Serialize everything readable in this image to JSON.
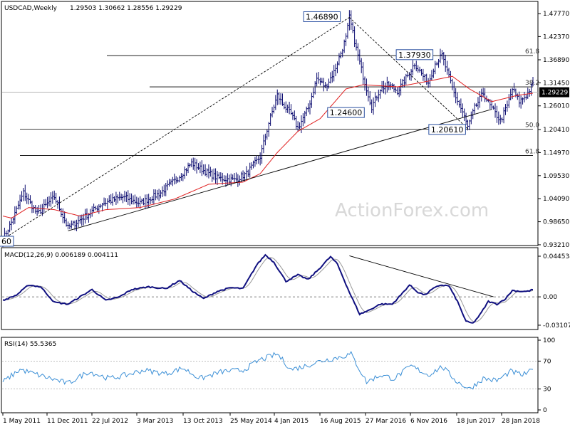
{
  "chart_data": [
    {
      "type": "ohlc",
      "title": "USDCAD,Weekly",
      "ohlc_header": "1.29503 1.30662 1.28556 1.29229",
      "current_price_label": "1.29229",
      "ylim": [
        0.932,
        1.505
      ],
      "y_ticks": [
        "1.47770",
        "1.42370",
        "1.36890",
        "1.31450",
        "1.26010",
        "1.20410",
        "1.14970",
        "1.09530",
        "1.04090",
        "0.98650",
        "0.93210"
      ],
      "x_ticks": [
        "1 May 2011",
        "11 Dec 2011",
        "22 Jul 2012",
        "3 Mar 2013",
        "13 Oct 2013",
        "25 May 2014",
        "4 Jan 2015",
        "16 Aug 2015",
        "27 Mar 2016",
        "6 Nov 2016",
        "18 Jun 2017",
        "28 Jan 2018"
      ],
      "price_labels": [
        "1.46890",
        "1.37930",
        "1.24600",
        "1.20610",
        "60"
      ],
      "fib_levels": [
        {
          "label": "61.8",
          "value": 1.3787
        },
        {
          "label": "38.2",
          "value": 1.3049
        },
        {
          "label": "50.0",
          "value": 1.2048
        },
        {
          "label": "61.8",
          "value": 1.1428
        }
      ],
      "current_price": 1.29229,
      "anchors": [
        {
          "i": 0,
          "v": 0.945
        },
        {
          "i": 5,
          "v": 0.985
        },
        {
          "i": 12,
          "v": 1.055
        },
        {
          "i": 20,
          "v": 1.005
        },
        {
          "i": 30,
          "v": 1.045
        },
        {
          "i": 38,
          "v": 0.972
        },
        {
          "i": 50,
          "v": 1.005
        },
        {
          "i": 58,
          "v": 1.03
        },
        {
          "i": 70,
          "v": 1.045
        },
        {
          "i": 80,
          "v": 1.03
        },
        {
          "i": 92,
          "v": 1.055
        },
        {
          "i": 102,
          "v": 1.09
        },
        {
          "i": 110,
          "v": 1.125
        },
        {
          "i": 118,
          "v": 1.105
        },
        {
          "i": 125,
          "v": 1.09
        },
        {
          "i": 135,
          "v": 1.085
        },
        {
          "i": 142,
          "v": 1.1
        },
        {
          "i": 150,
          "v": 1.14
        },
        {
          "i": 155,
          "v": 1.22
        },
        {
          "i": 160,
          "v": 1.285
        },
        {
          "i": 163,
          "v": 1.265
        },
        {
          "i": 168,
          "v": 1.24
        },
        {
          "i": 172,
          "v": 1.208
        },
        {
          "i": 178,
          "v": 1.255
        },
        {
          "i": 183,
          "v": 1.325
        },
        {
          "i": 188,
          "v": 1.305
        },
        {
          "i": 193,
          "v": 1.34
        },
        {
          "i": 197,
          "v": 1.385
        },
        {
          "i": 200,
          "v": 1.42
        },
        {
          "i": 202,
          "v": 1.4689
        },
        {
          "i": 206,
          "v": 1.395
        },
        {
          "i": 210,
          "v": 1.33
        },
        {
          "i": 215,
          "v": 1.258
        },
        {
          "i": 220,
          "v": 1.3
        },
        {
          "i": 225,
          "v": 1.31
        },
        {
          "i": 230,
          "v": 1.295
        },
        {
          "i": 235,
          "v": 1.325
        },
        {
          "i": 240,
          "v": 1.36
        },
        {
          "i": 245,
          "v": 1.33
        },
        {
          "i": 248,
          "v": 1.315
        },
        {
          "i": 252,
          "v": 1.36
        },
        {
          "i": 256,
          "v": 1.379
        },
        {
          "i": 259,
          "v": 1.34
        },
        {
          "i": 263,
          "v": 1.29
        },
        {
          "i": 268,
          "v": 1.245
        },
        {
          "i": 271,
          "v": 1.21
        },
        {
          "i": 275,
          "v": 1.255
        },
        {
          "i": 280,
          "v": 1.29
        },
        {
          "i": 284,
          "v": 1.26
        },
        {
          "i": 290,
          "v": 1.225
        },
        {
          "i": 294,
          "v": 1.26
        },
        {
          "i": 297,
          "v": 1.3
        },
        {
          "i": 301,
          "v": 1.27
        },
        {
          "i": 305,
          "v": 1.285
        },
        {
          "i": 309,
          "v": 1.31
        }
      ],
      "sma_offset": [
        {
          "i": 0,
          "v": 1.0
        },
        {
          "i": 5,
          "v": 0.995
        },
        {
          "i": 15,
          "v": 1.02
        },
        {
          "i": 30,
          "v": 1.015
        },
        {
          "i": 45,
          "v": 1.0
        },
        {
          "i": 60,
          "v": 1.015
        },
        {
          "i": 80,
          "v": 1.02
        },
        {
          "i": 100,
          "v": 1.04
        },
        {
          "i": 120,
          "v": 1.075
        },
        {
          "i": 140,
          "v": 1.08
        },
        {
          "i": 150,
          "v": 1.1
        },
        {
          "i": 160,
          "v": 1.15
        },
        {
          "i": 172,
          "v": 1.2
        },
        {
          "i": 185,
          "v": 1.23
        },
        {
          "i": 200,
          "v": 1.3
        },
        {
          "i": 210,
          "v": 1.31
        },
        {
          "i": 230,
          "v": 1.305
        },
        {
          "i": 250,
          "v": 1.32
        },
        {
          "i": 262,
          "v": 1.33
        },
        {
          "i": 272,
          "v": 1.3
        },
        {
          "i": 285,
          "v": 1.27
        },
        {
          "i": 300,
          "v": 1.285
        },
        {
          "i": 309,
          "v": 1.29
        }
      ]
    },
    {
      "type": "line",
      "title": "MACD(12,26,9) 0.006189 0.004111",
      "ylim": [
        -0.035,
        0.05
      ],
      "y_ticks": [
        "0.044534",
        "0.00",
        "-0.031072"
      ],
      "anchors": [
        {
          "i": 0,
          "v": -0.004
        },
        {
          "i": 8,
          "v": 0.002
        },
        {
          "i": 15,
          "v": 0.013
        },
        {
          "i": 22,
          "v": 0.011
        },
        {
          "i": 30,
          "v": -0.006
        },
        {
          "i": 38,
          "v": -0.008
        },
        {
          "i": 45,
          "v": 0.0
        },
        {
          "i": 52,
          "v": 0.008
        },
        {
          "i": 60,
          "v": -0.004
        },
        {
          "i": 68,
          "v": 0.0
        },
        {
          "i": 75,
          "v": 0.008
        },
        {
          "i": 85,
          "v": 0.011
        },
        {
          "i": 95,
          "v": 0.009
        },
        {
          "i": 103,
          "v": 0.018
        },
        {
          "i": 110,
          "v": 0.007
        },
        {
          "i": 117,
          "v": -0.002
        },
        {
          "i": 125,
          "v": 0.006
        },
        {
          "i": 133,
          "v": 0.01
        },
        {
          "i": 140,
          "v": 0.009
        },
        {
          "i": 148,
          "v": 0.035
        },
        {
          "i": 153,
          "v": 0.046
        },
        {
          "i": 158,
          "v": 0.038
        },
        {
          "i": 165,
          "v": 0.017
        },
        {
          "i": 172,
          "v": 0.024
        },
        {
          "i": 178,
          "v": 0.019
        },
        {
          "i": 184,
          "v": 0.03
        },
        {
          "i": 191,
          "v": 0.044
        },
        {
          "i": 195,
          "v": 0.036
        },
        {
          "i": 202,
          "v": 0.005
        },
        {
          "i": 208,
          "v": -0.019
        },
        {
          "i": 213,
          "v": -0.015
        },
        {
          "i": 220,
          "v": -0.008
        },
        {
          "i": 227,
          "v": -0.008
        },
        {
          "i": 232,
          "v": 0.002
        },
        {
          "i": 237,
          "v": 0.013
        },
        {
          "i": 242,
          "v": 0.005
        },
        {
          "i": 246,
          "v": 0.002
        },
        {
          "i": 250,
          "v": 0.008
        },
        {
          "i": 255,
          "v": 0.013
        },
        {
          "i": 260,
          "v": 0.012
        },
        {
          "i": 265,
          "v": -0.005
        },
        {
          "i": 270,
          "v": -0.027
        },
        {
          "i": 274,
          "v": -0.029
        },
        {
          "i": 278,
          "v": -0.02
        },
        {
          "i": 283,
          "v": -0.005
        },
        {
          "i": 288,
          "v": -0.008
        },
        {
          "i": 293,
          "v": -0.002
        },
        {
          "i": 297,
          "v": 0.007
        },
        {
          "i": 302,
          "v": 0.006
        },
        {
          "i": 306,
          "v": 0.006
        },
        {
          "i": 309,
          "v": 0.008
        }
      ],
      "trendline": [
        {
          "i": 202,
          "v": 0.045
        },
        {
          "i": 286,
          "v": 0.0
        }
      ]
    },
    {
      "type": "line",
      "title": "RSI(14) 55.5365",
      "ylim": [
        0,
        100
      ],
      "y_ticks": [
        "100",
        "70",
        "30",
        "0"
      ],
      "anchors": [
        {
          "i": 0,
          "v": 40
        },
        {
          "i": 10,
          "v": 58
        },
        {
          "i": 18,
          "v": 52
        },
        {
          "i": 28,
          "v": 45
        },
        {
          "i": 38,
          "v": 38
        },
        {
          "i": 50,
          "v": 55
        },
        {
          "i": 62,
          "v": 45
        },
        {
          "i": 72,
          "v": 50
        },
        {
          "i": 82,
          "v": 57
        },
        {
          "i": 95,
          "v": 52
        },
        {
          "i": 105,
          "v": 60
        },
        {
          "i": 115,
          "v": 45
        },
        {
          "i": 128,
          "v": 55
        },
        {
          "i": 140,
          "v": 57
        },
        {
          "i": 150,
          "v": 72
        },
        {
          "i": 160,
          "v": 80
        },
        {
          "i": 168,
          "v": 58
        },
        {
          "i": 175,
          "v": 62
        },
        {
          "i": 185,
          "v": 70
        },
        {
          "i": 195,
          "v": 75
        },
        {
          "i": 203,
          "v": 80
        },
        {
          "i": 212,
          "v": 40
        },
        {
          "i": 220,
          "v": 50
        },
        {
          "i": 228,
          "v": 45
        },
        {
          "i": 238,
          "v": 63
        },
        {
          "i": 248,
          "v": 50
        },
        {
          "i": 256,
          "v": 62
        },
        {
          "i": 265,
          "v": 40
        },
        {
          "i": 272,
          "v": 30
        },
        {
          "i": 280,
          "v": 45
        },
        {
          "i": 288,
          "v": 42
        },
        {
          "i": 296,
          "v": 55
        },
        {
          "i": 303,
          "v": 50
        },
        {
          "i": 309,
          "v": 57
        }
      ]
    }
  ],
  "watermark": "ActionForex.com",
  "colors": {
    "bars": "#0a0a6e",
    "sma": "#e02020",
    "macd": "#101080",
    "signal": "#999999",
    "rsi": "#3b8fd6",
    "grid": "#000000"
  }
}
